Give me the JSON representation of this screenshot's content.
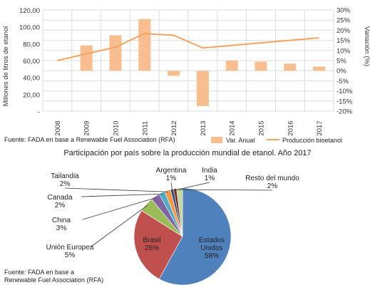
{
  "chart_data": [
    {
      "type": "bar+line",
      "title": "",
      "categories": [
        "2008",
        "2009",
        "2010",
        "2011",
        "2012",
        "2013",
        "2014",
        "2015",
        "2016",
        "2017"
      ],
      "ylabel_left": "Millones de litros de etanol",
      "ylabel_right": "Variación (%)",
      "yticks_left": [
        "-",
        "20,00",
        "40,00",
        "60,00",
        "80,00",
        "100,00",
        "120,00"
      ],
      "ylim_left": [
        0,
        120
      ],
      "yticks_right": [
        "-20%",
        "-15%",
        "-10%",
        "-5%",
        "0%",
        "5%",
        "10%",
        "15%",
        "20%",
        "25%",
        "30%"
      ],
      "ylim_right": [
        -20,
        30
      ],
      "source": "Fuente: FADA en base a  Renewable Fuel Association (RFA)",
      "bar_color": "#F9BE8F",
      "line_color": "#F4A460",
      "grid": true,
      "legend_position": "bottom-right",
      "series": [
        {
          "name": "Var. Anual",
          "kind": "bar",
          "axis": "right",
          "values": [
            null,
            12.5,
            17.5,
            25.5,
            -2.5,
            -17.5,
            5,
            4.5,
            3.5,
            2
          ]
        },
        {
          "name": "Producción bioetanol",
          "kind": "line",
          "axis": "left",
          "values": [
            60,
            68,
            76,
            92,
            90,
            75,
            78,
            81,
            84,
            87
          ]
        }
      ]
    },
    {
      "type": "pie",
      "title": "Participación por país sobre la producción mundial de etanol. Año 2017",
      "source": [
        "Fuente: FADA en base a",
        "Renewable Fuel Association (RFA)"
      ],
      "slices": [
        {
          "label": "Estados Unidos",
          "display_lines": [
            "Estados",
            "Unidos",
            "58%"
          ],
          "value": 58,
          "color": "#4F81BD"
        },
        {
          "label": "Brasil",
          "display_lines": [
            "Brasil",
            "26%"
          ],
          "value": 26,
          "color": "#C0504D"
        },
        {
          "label": "Unión Europea",
          "display_lines": [
            "Unión Europea",
            "5%"
          ],
          "value": 5,
          "color": "#9BBB59"
        },
        {
          "label": "China",
          "display_lines": [
            "China",
            "3%"
          ],
          "value": 3,
          "color": "#8064A2"
        },
        {
          "label": "Canada",
          "display_lines": [
            "Canada",
            "2%"
          ],
          "value": 2,
          "color": "#4BACC6"
        },
        {
          "label": "Tailandia",
          "display_lines": [
            "Tailandia",
            "2%"
          ],
          "value": 2,
          "color": "#F79646"
        },
        {
          "label": "Argentina",
          "display_lines": [
            "Argentina",
            "1%"
          ],
          "value": 1,
          "color": "#2C4D75"
        },
        {
          "label": "India",
          "display_lines": [
            "India",
            "1%"
          ],
          "value": 1,
          "color": "#772C2A"
        },
        {
          "label": "Resto del mundo",
          "display_lines": [
            "Resto del mundo",
            "2%"
          ],
          "value": 2,
          "color": "#C3D69B"
        }
      ]
    }
  ]
}
